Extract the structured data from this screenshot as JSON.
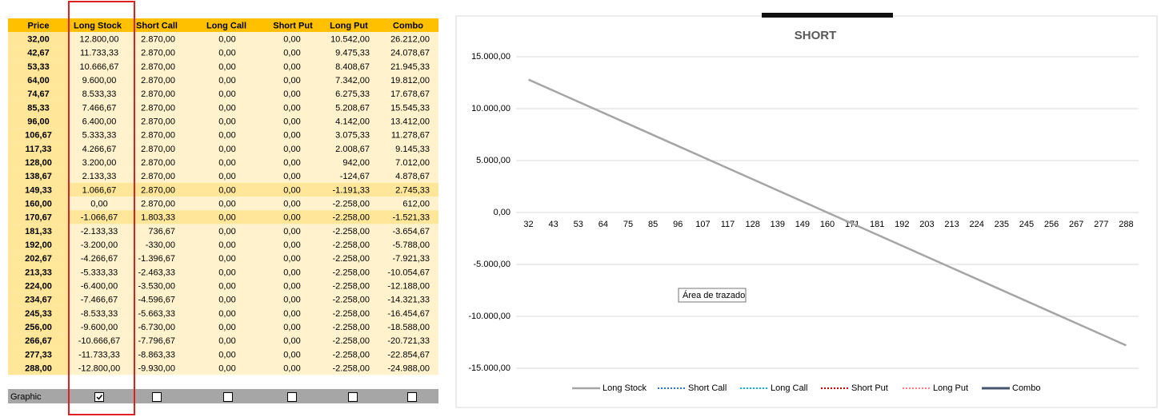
{
  "table": {
    "headers": [
      "Price",
      "Long Stock",
      "Short Call",
      "Long Call",
      "Short Put",
      "Long Put",
      "Combo"
    ],
    "rows": [
      [
        "32,00",
        "12.800,00",
        "2.870,00",
        "0,00",
        "0,00",
        "10.542,00",
        "26.212,00"
      ],
      [
        "42,67",
        "11.733,33",
        "2.870,00",
        "0,00",
        "0,00",
        "9.475,33",
        "24.078,67"
      ],
      [
        "53,33",
        "10.666,67",
        "2.870,00",
        "0,00",
        "0,00",
        "8.408,67",
        "21.945,33"
      ],
      [
        "64,00",
        "9.600,00",
        "2.870,00",
        "0,00",
        "0,00",
        "7.342,00",
        "19.812,00"
      ],
      [
        "74,67",
        "8.533,33",
        "2.870,00",
        "0,00",
        "0,00",
        "6.275,33",
        "17.678,67"
      ],
      [
        "85,33",
        "7.466,67",
        "2.870,00",
        "0,00",
        "0,00",
        "5.208,67",
        "15.545,33"
      ],
      [
        "96,00",
        "6.400,00",
        "2.870,00",
        "0,00",
        "0,00",
        "4.142,00",
        "13.412,00"
      ],
      [
        "106,67",
        "5.333,33",
        "2.870,00",
        "0,00",
        "0,00",
        "3.075,33",
        "11.278,67"
      ],
      [
        "117,33",
        "4.266,67",
        "2.870,00",
        "0,00",
        "0,00",
        "2.008,67",
        "9.145,33"
      ],
      [
        "128,00",
        "3.200,00",
        "2.870,00",
        "0,00",
        "0,00",
        "942,00",
        "7.012,00"
      ],
      [
        "138,67",
        "2.133,33",
        "2.870,00",
        "0,00",
        "0,00",
        "-124,67",
        "4.878,67"
      ],
      [
        "149,33",
        "1.066,67",
        "2.870,00",
        "0,00",
        "0,00",
        "-1.191,33",
        "2.745,33"
      ],
      [
        "160,00",
        "0,00",
        "2.870,00",
        "0,00",
        "0,00",
        "-2.258,00",
        "612,00"
      ],
      [
        "170,67",
        "-1.066,67",
        "1.803,33",
        "0,00",
        "0,00",
        "-2.258,00",
        "-1.521,33"
      ],
      [
        "181,33",
        "-2.133,33",
        "736,67",
        "0,00",
        "0,00",
        "-2.258,00",
        "-3.654,67"
      ],
      [
        "192,00",
        "-3.200,00",
        "-330,00",
        "0,00",
        "0,00",
        "-2.258,00",
        "-5.788,00"
      ],
      [
        "202,67",
        "-4.266,67",
        "-1.396,67",
        "0,00",
        "0,00",
        "-2.258,00",
        "-7.921,33"
      ],
      [
        "213,33",
        "-5.333,33",
        "-2.463,33",
        "0,00",
        "0,00",
        "-2.258,00",
        "-10.054,67"
      ],
      [
        "224,00",
        "-6.400,00",
        "-3.530,00",
        "0,00",
        "0,00",
        "-2.258,00",
        "-12.188,00"
      ],
      [
        "234,67",
        "-7.466,67",
        "-4.596,67",
        "0,00",
        "0,00",
        "-2.258,00",
        "-14.321,33"
      ],
      [
        "245,33",
        "-8.533,33",
        "-5.663,33",
        "0,00",
        "0,00",
        "-2.258,00",
        "-16.454,67"
      ],
      [
        "256,00",
        "-9.600,00",
        "-6.730,00",
        "0,00",
        "0,00",
        "-2.258,00",
        "-18.588,00"
      ],
      [
        "266,67",
        "-10.666,67",
        "-7.796,67",
        "0,00",
        "0,00",
        "-2.258,00",
        "-20.721,33"
      ],
      [
        "277,33",
        "-11.733,33",
        "-8.863,33",
        "0,00",
        "0,00",
        "-2.258,00",
        "-22.854,67"
      ],
      [
        "288,00",
        "-12.800,00",
        "-9.930,00",
        "0,00",
        "0,00",
        "-2.258,00",
        "-24.988,00"
      ]
    ]
  },
  "graphic": {
    "label": "Graphic",
    "checked": [
      true,
      false,
      false,
      false,
      false,
      false
    ]
  },
  "tooltip": "Área de trazado",
  "chart_data": {
    "type": "line",
    "title": "SHORT",
    "categories": [
      "32",
      "43",
      "53",
      "64",
      "75",
      "85",
      "96",
      "107",
      "117",
      "128",
      "139",
      "149",
      "160",
      "171",
      "181",
      "192",
      "203",
      "213",
      "224",
      "235",
      "245",
      "256",
      "267",
      "277",
      "288"
    ],
    "series": [
      {
        "name": "Long Stock",
        "color": "#a5a5a5",
        "values": [
          12800,
          11733.33,
          10666.67,
          9600,
          8533.33,
          7466.67,
          6400,
          5333.33,
          4266.67,
          3200,
          2133.33,
          1066.67,
          0,
          -1066.67,
          -2133.33,
          -3200,
          -4266.67,
          -5333.33,
          -6400,
          -7466.67,
          -8533.33,
          -9600,
          -10666.67,
          -11733.33,
          -12800
        ]
      },
      {
        "name": "Short Call",
        "color": "#2e75b6",
        "dash": "dotted"
      },
      {
        "name": "Long Call",
        "color": "#00b0f0",
        "dash": "dotted"
      },
      {
        "name": "Short Put",
        "color": "#c00000",
        "dash": "dotted"
      },
      {
        "name": "Long Put",
        "color": "#ff7c80",
        "dash": "dotted"
      },
      {
        "name": "Combo",
        "color": "#44546a"
      }
    ],
    "ylim": [
      -15000,
      15000
    ],
    "yticks": [
      {
        "value": -15000,
        "label": "-15.000,00"
      },
      {
        "value": -10000,
        "label": "-10.000,00"
      },
      {
        "value": -5000,
        "label": "-5.000,00"
      },
      {
        "value": 0,
        "label": "0,00"
      },
      {
        "value": 5000,
        "label": "5.000,00"
      },
      {
        "value": 10000,
        "label": "10.000,00"
      },
      {
        "value": 15000,
        "label": "15.000,00"
      }
    ],
    "grid": true,
    "legend": "bottom"
  }
}
